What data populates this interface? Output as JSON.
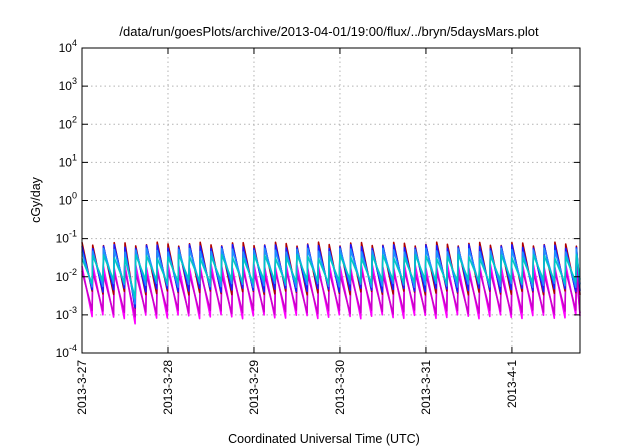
{
  "chart_data": {
    "type": "line",
    "title": "/data/run/goesPlots/archive/2013-04-01/19:00/flux/../bryn/5daysMars.plot",
    "xlabel": "Coordinated Universal Time (UTC)",
    "ylabel": "cGy/day",
    "yscale": "log",
    "ylim": [
      0.0001,
      10000
    ],
    "xlim": [
      "2013-03-27T00:00",
      "2013-04-01T19:00"
    ],
    "grid": true,
    "x_ticks": [
      "2013-3-27",
      "2013-3-28",
      "2013-3-29",
      "2013-3-30",
      "2013-3-31",
      "2013-4-1"
    ],
    "y_ticks": [
      {
        "value": 0.0001,
        "base": "10",
        "exp": "-4"
      },
      {
        "value": 0.001,
        "base": "10",
        "exp": "-3"
      },
      {
        "value": 0.01,
        "base": "10",
        "exp": "-2"
      },
      {
        "value": 0.1,
        "base": "10",
        "exp": "-1"
      },
      {
        "value": 1,
        "base": "10",
        "exp": "0"
      },
      {
        "value": 10,
        "base": "10",
        "exp": "1"
      },
      {
        "value": 100,
        "base": "10",
        "exp": "2"
      },
      {
        "value": 1000,
        "base": "10",
        "exp": "3"
      },
      {
        "value": 10000,
        "base": "10",
        "exp": "4"
      }
    ],
    "cycle_hours": 3,
    "series": [
      {
        "color": "#ff00ff",
        "peak": 0.019,
        "trough": 0.0009,
        "dropout_trough": 0.00055
      },
      {
        "color": "#cc00cc",
        "peak": 0.013,
        "trough": 0.0012,
        "dropout_trough": 0.0008
      },
      {
        "color": "#b00000",
        "peak": 0.072,
        "trough": 0.0038,
        "dropout_trough": 0.0014
      },
      {
        "color": "#1a1aff",
        "peak": 0.062,
        "trough": 0.0045,
        "dropout_trough": 0.0016
      },
      {
        "color": "#1e90ff",
        "peak": 0.05,
        "trough": 0.006,
        "dropout_trough": 0.0022
      },
      {
        "color": "#00c8c8",
        "peak": 0.034,
        "trough": 0.0075,
        "dropout_trough": 0.003
      }
    ]
  }
}
